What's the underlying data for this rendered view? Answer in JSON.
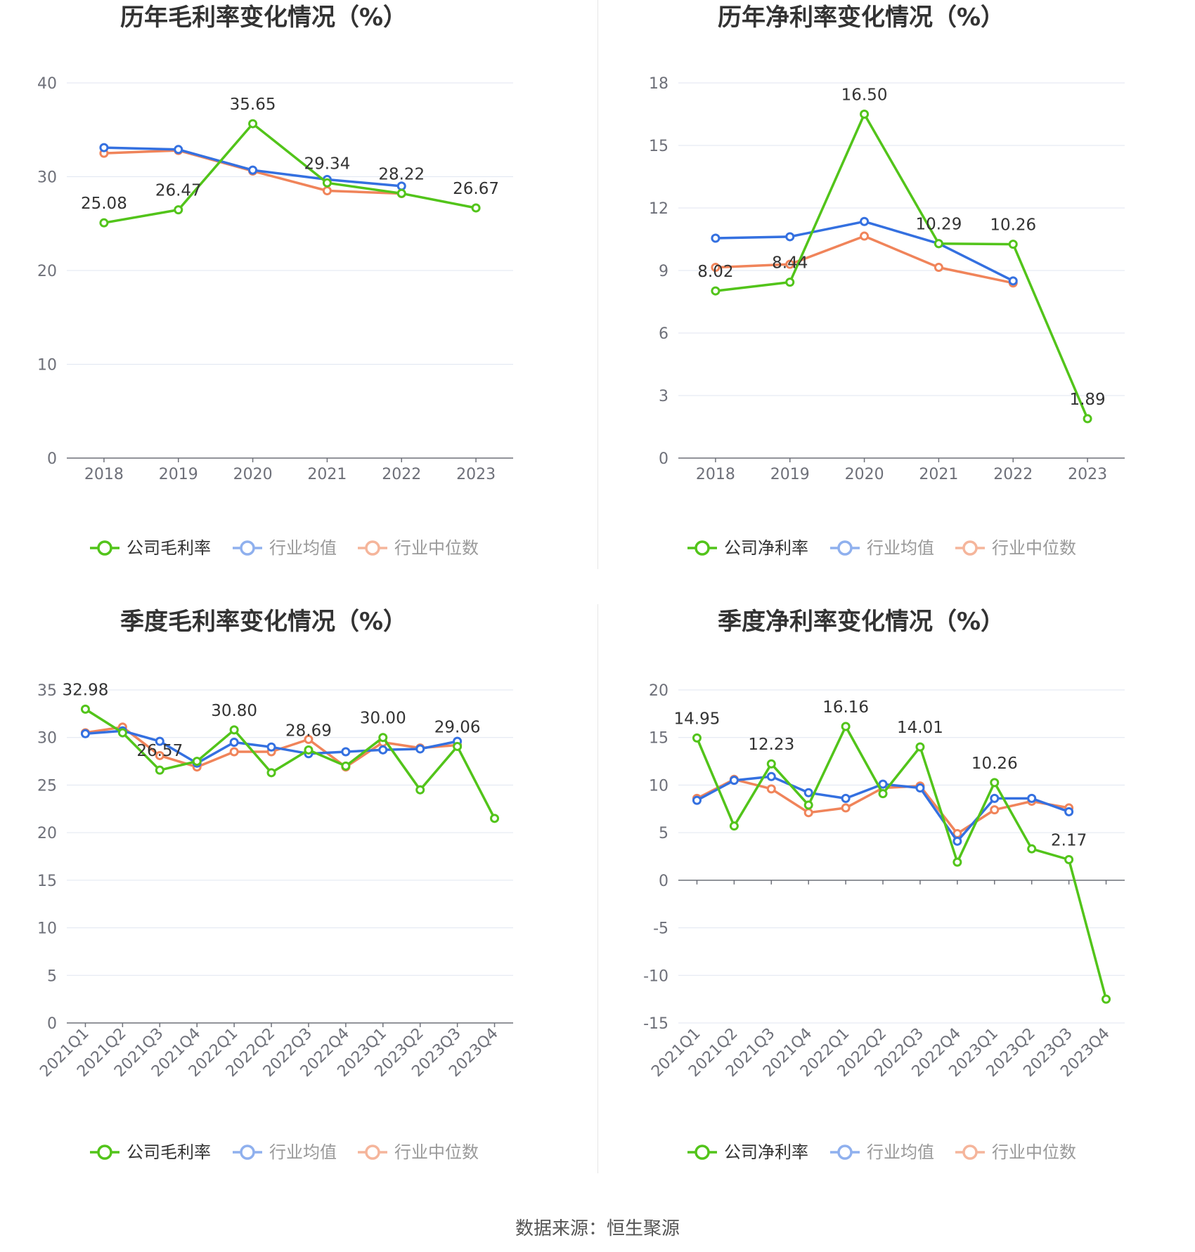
{
  "source_label": "数据来源：",
  "source_value": "恒生聚源",
  "colors": {
    "company": "#52c41a",
    "avg": "#3470e0",
    "median": "#f0845a"
  },
  "chart_data": [
    {
      "type": "line",
      "title": "历年毛利率变化情况（%）",
      "categories": [
        "2018",
        "2019",
        "2020",
        "2021",
        "2022",
        "2023"
      ],
      "ylim": [
        0,
        40
      ],
      "yticks": [
        0,
        10,
        20,
        30,
        40
      ],
      "grid": true,
      "legend_position": "bottom",
      "series": [
        {
          "name": "公司毛利率",
          "color": "#52c41a",
          "values": [
            25.08,
            26.47,
            35.65,
            29.34,
            28.22,
            26.67
          ],
          "labels": [
            "25.08",
            "26.47",
            "35.65",
            "29.34",
            "28.22",
            "26.67"
          ]
        },
        {
          "name": "行业均值",
          "color": "#3470e0",
          "values": [
            33.1,
            32.9,
            30.7,
            29.7,
            29.0,
            null
          ]
        },
        {
          "name": "行业中位数",
          "color": "#f0845a",
          "values": [
            32.5,
            32.8,
            30.6,
            28.5,
            28.2,
            null
          ]
        }
      ]
    },
    {
      "type": "line",
      "title": "历年净利率变化情况（%）",
      "categories": [
        "2018",
        "2019",
        "2020",
        "2021",
        "2022",
        "2023"
      ],
      "ylim": [
        0,
        18
      ],
      "yticks": [
        0,
        3,
        6,
        9,
        12,
        15,
        18
      ],
      "grid": true,
      "legend_position": "bottom",
      "series": [
        {
          "name": "公司净利率",
          "color": "#52c41a",
          "values": [
            8.02,
            8.44,
            16.5,
            10.29,
            10.26,
            1.89
          ],
          "labels": [
            "8.02",
            "8.44",
            "16.50",
            "10.29",
            "10.26",
            "1.89"
          ]
        },
        {
          "name": "行业均值",
          "color": "#3470e0",
          "values": [
            10.55,
            10.62,
            11.35,
            10.29,
            8.5,
            null
          ]
        },
        {
          "name": "行业中位数",
          "color": "#f0845a",
          "values": [
            9.15,
            9.3,
            10.65,
            9.15,
            8.4,
            null
          ]
        }
      ]
    },
    {
      "type": "line",
      "title": "季度毛利率变化情况（%）",
      "categories": [
        "2021Q1",
        "2021Q2",
        "2021Q3",
        "2021Q4",
        "2022Q1",
        "2022Q2",
        "2022Q3",
        "2022Q4",
        "2023Q1",
        "2023Q2",
        "2023Q3",
        "2023Q4"
      ],
      "ylim": [
        0,
        35
      ],
      "yticks": [
        0,
        5,
        10,
        15,
        20,
        25,
        30,
        35
      ],
      "grid": true,
      "legend_position": "bottom",
      "series": [
        {
          "name": "公司毛利率",
          "color": "#52c41a",
          "values": [
            32.98,
            30.5,
            26.57,
            27.5,
            30.8,
            26.3,
            28.69,
            27.0,
            30.0,
            24.5,
            29.06,
            21.5
          ],
          "labels": [
            "32.98",
            "",
            "26.57",
            "",
            "30.80",
            "",
            "28.69",
            "",
            "30.00",
            "",
            "29.06",
            ""
          ]
        },
        {
          "name": "行业均值",
          "color": "#3470e0",
          "values": [
            30.4,
            30.7,
            29.6,
            27.3,
            29.5,
            29.0,
            28.3,
            28.5,
            28.7,
            28.8,
            29.6,
            null
          ]
        },
        {
          "name": "行业中位数",
          "color": "#f0845a",
          "values": [
            30.5,
            31.1,
            28.1,
            26.9,
            28.5,
            28.5,
            29.8,
            26.9,
            29.5,
            28.9,
            29.2,
            null
          ]
        }
      ]
    },
    {
      "type": "line",
      "title": "季度净利率变化情况（%）",
      "categories": [
        "2021Q1",
        "2021Q2",
        "2021Q3",
        "2021Q4",
        "2022Q1",
        "2022Q2",
        "2022Q3",
        "2022Q4",
        "2023Q1",
        "2023Q2",
        "2023Q3",
        "2023Q4"
      ],
      "ylim": [
        -15,
        20
      ],
      "yticks": [
        -15,
        -10,
        -5,
        0,
        5,
        10,
        15,
        20
      ],
      "grid": true,
      "legend_position": "bottom",
      "series": [
        {
          "name": "公司净利率",
          "color": "#52c41a",
          "values": [
            14.95,
            5.7,
            12.23,
            7.9,
            16.16,
            9.1,
            14.01,
            1.9,
            10.26,
            3.3,
            2.17,
            -12.5
          ],
          "labels": [
            "14.95",
            "",
            "12.23",
            "",
            "16.16",
            "",
            "14.01",
            "",
            "10.26",
            "",
            "2.17",
            ""
          ]
        },
        {
          "name": "行业均值",
          "color": "#3470e0",
          "values": [
            8.4,
            10.5,
            10.9,
            9.2,
            8.6,
            10.1,
            9.7,
            4.1,
            8.6,
            8.6,
            7.2,
            null
          ]
        },
        {
          "name": "行业中位数",
          "color": "#f0845a",
          "values": [
            8.6,
            10.6,
            9.6,
            7.1,
            7.6,
            9.7,
            9.9,
            4.9,
            7.4,
            8.3,
            7.6,
            null
          ]
        }
      ]
    }
  ]
}
